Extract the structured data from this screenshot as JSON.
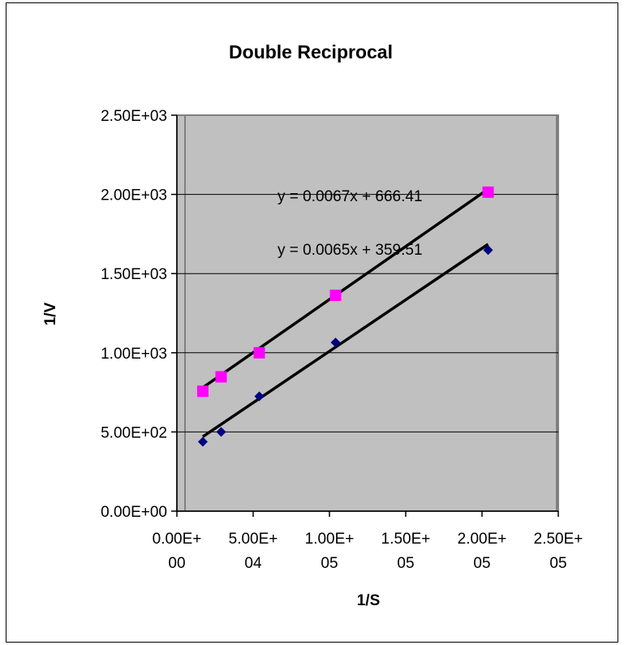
{
  "chart_data": {
    "type": "scatter",
    "title": "Double Reciprocal",
    "xlabel": "1/S",
    "ylabel": "1/V",
    "xlim": [
      0,
      250000
    ],
    "ylim": [
      0,
      2500
    ],
    "grid": "horizontal",
    "legend": "none",
    "x_ticks": [
      {
        "value": 0,
        "line1": "0.00E+",
        "line2": "00"
      },
      {
        "value": 50000,
        "line1": "5.00E+",
        "line2": "04"
      },
      {
        "value": 100000,
        "line1": "1.00E+",
        "line2": "05"
      },
      {
        "value": 150000,
        "line1": "1.50E+",
        "line2": "05"
      },
      {
        "value": 200000,
        "line1": "2.00E+",
        "line2": "05"
      },
      {
        "value": 250000,
        "line1": "2.50E+",
        "line2": "05"
      }
    ],
    "y_ticks": [
      {
        "value": 0,
        "label": "0.00E+00"
      },
      {
        "value": 500,
        "label": "5.00E+02"
      },
      {
        "value": 1000,
        "label": "1.00E+03"
      },
      {
        "value": 1500,
        "label": "1.50E+03"
      },
      {
        "value": 2000,
        "label": "2.00E+03"
      },
      {
        "value": 2500,
        "label": "2.50E+03"
      }
    ],
    "series": [
      {
        "marker": "square",
        "color": "#ff00ff",
        "x": [
          17000,
          29000,
          54000,
          104000,
          204000
        ],
        "y": [
          757,
          848,
          1000,
          1363,
          2014
        ],
        "trendline": {
          "slope": 0.0067,
          "intercept": 666.41,
          "label": "y = 0.0067x + 666.41"
        }
      },
      {
        "marker": "diamond",
        "color": "#000080",
        "x": [
          17000,
          29000,
          54000,
          104000,
          204000
        ],
        "y": [
          438,
          500,
          725,
          1065,
          1648
        ],
        "trendline": {
          "slope": 0.0065,
          "intercept": 359.51,
          "label": "y = 0.0065x + 359.51"
        }
      }
    ]
  }
}
